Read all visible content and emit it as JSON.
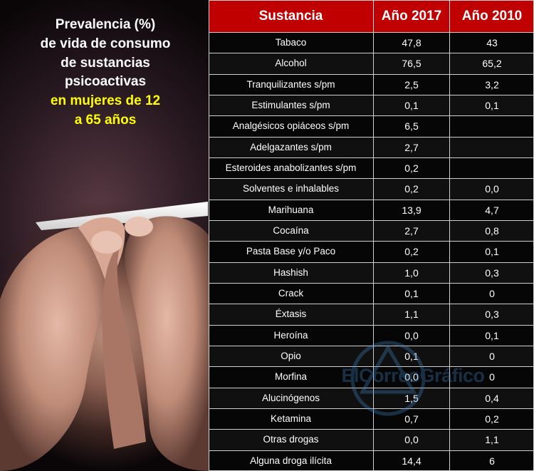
{
  "title": {
    "line1": "Prevalencia (%)",
    "line2": "de vida de consumo",
    "line3": "de sustancias",
    "line4": "psicoactivas",
    "line5": "en mujeres  de 12",
    "line6": "a 65 años"
  },
  "table": {
    "headers": [
      "Sustancia",
      "Año 2017",
      "Año 2010"
    ],
    "rows": [
      {
        "name": "Tabaco",
        "y2017": "47,8",
        "y2010": "43"
      },
      {
        "name": "Alcohol",
        "y2017": "76,5",
        "y2010": "65,2"
      },
      {
        "name": "Tranquilizantes s/pm",
        "y2017": "2,5",
        "y2010": "3,2"
      },
      {
        "name": "Estimulantes s/pm",
        "y2017": "0,1",
        "y2010": "0,1"
      },
      {
        "name": "Analgésicos opiáceos s/pm",
        "y2017": "6,5",
        "y2010": ""
      },
      {
        "name": "Adelgazantes s/pm",
        "y2017": "2,7",
        "y2010": ""
      },
      {
        "name": "Esteroides anabolizantes s/pm",
        "y2017": "0,2",
        "y2010": ""
      },
      {
        "name": "Solventes e inhalables",
        "y2017": "0,2",
        "y2010": "0,0"
      },
      {
        "name": "Marihuana",
        "y2017": "13,9",
        "y2010": "4,7"
      },
      {
        "name": "Cocaína",
        "y2017": "2,7",
        "y2010": "0,8"
      },
      {
        "name": "Pasta Base y/o Paco",
        "y2017": "0,2",
        "y2010": "0,1"
      },
      {
        "name": "Hashish",
        "y2017": "1,0",
        "y2010": "0,3"
      },
      {
        "name": "Crack",
        "y2017": "0,1",
        "y2010": "0"
      },
      {
        "name": "Éxtasis",
        "y2017": "1,1",
        "y2010": "0,3"
      },
      {
        "name": "Heroína",
        "y2017": "0,0",
        "y2010": "0,1"
      },
      {
        "name": "Opio",
        "y2017": "0,1",
        "y2010": "0"
      },
      {
        "name": "Morfina",
        "y2017": "0,0",
        "y2010": "0"
      },
      {
        "name": "Alucinógenos",
        "y2017": "1,5",
        "y2010": "0,4"
      },
      {
        "name": "Ketamina",
        "y2017": "0,7",
        "y2010": "0,2"
      },
      {
        "name": "Otras drogas",
        "y2017": "0,0",
        "y2010": "1,1"
      },
      {
        "name": "Alguna droga ilícita",
        "y2017": "14,4",
        "y2010": "6"
      }
    ]
  },
  "watermark": {
    "text": "ElCorreoGráfico"
  },
  "colors": {
    "header_bg": "#c00000",
    "highlight_text": "#ffff00",
    "watermark": "#3f87c8"
  }
}
